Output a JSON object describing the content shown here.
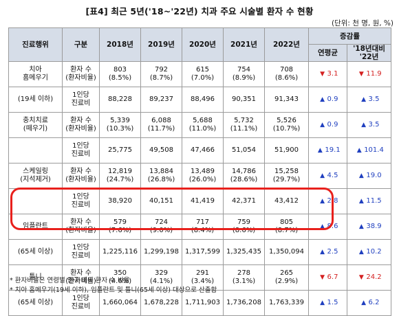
{
  "title": "[표4] 최근 5년('18~'22년) 치과 주요 시술별 환자 수 현황",
  "unit": "(단위: 천 명, 원, %)",
  "headers": {
    "treatment": "진료행위",
    "category": "구분",
    "years": [
      "2018년",
      "2019년",
      "2020년",
      "2021년",
      "2022년"
    ],
    "growth": "증감률",
    "annual": "연평균",
    "vs_line1": "'18년대비",
    "vs_line2": "'22년"
  },
  "rows": [
    {
      "treatment_lines": [
        "치아",
        "홈메우기"
      ],
      "treatment_sub": "(19세 이하)",
      "patients": {
        "label_lines": [
          "환자 수",
          "(환자비율)"
        ],
        "values": [
          [
            "803",
            "(8.5%)"
          ],
          [
            "792",
            "(8.7%)"
          ],
          [
            "615",
            "(7.0%)"
          ],
          [
            "754",
            "(8.9%)"
          ],
          [
            "708",
            "(8.6%)"
          ]
        ],
        "annual": {
          "dir": "down",
          "value": "3.1"
        },
        "vs": {
          "dir": "down",
          "value": "11.9"
        }
      },
      "cost": {
        "label_lines": [
          "1인당",
          "진료비"
        ],
        "values": [
          "88,228",
          "89,237",
          "88,496",
          "90,351",
          "91,343"
        ],
        "annual": {
          "dir": "up",
          "value": "0.9"
        },
        "vs": {
          "dir": "up",
          "value": "3.5"
        }
      }
    },
    {
      "treatment_lines": [
        "충치치료",
        "(떼우기)"
      ],
      "treatment_sub": "",
      "patients": {
        "label_lines": [
          "환자 수",
          "(환자비율)"
        ],
        "values": [
          [
            "5,339",
            "(10.3%)"
          ],
          [
            "6,088",
            "(11.7%)"
          ],
          [
            "5,688",
            "(11.0%)"
          ],
          [
            "5,732",
            "(11.1%)"
          ],
          [
            "5,526",
            "(10.7%)"
          ]
        ],
        "annual": {
          "dir": "up",
          "value": "0.9"
        },
        "vs": {
          "dir": "up",
          "value": "3.5"
        }
      },
      "cost": {
        "label_lines": [
          "1인당",
          "진료비"
        ],
        "values": [
          "25,775",
          "49,508",
          "47,466",
          "51,054",
          "51,900"
        ],
        "annual": {
          "dir": "up",
          "value": "19.1"
        },
        "vs": {
          "dir": "up",
          "value": "101.4"
        }
      }
    },
    {
      "treatment_lines": [
        "스케일링",
        "(지석제거)"
      ],
      "treatment_sub": "",
      "patients": {
        "label_lines": [
          "환자 수",
          "(환자비율)"
        ],
        "values": [
          [
            "12,819",
            "(24.7%)"
          ],
          [
            "13,884",
            "(26.8%)"
          ],
          [
            "13,489",
            "(26.0%)"
          ],
          [
            "14,786",
            "(28.6%)"
          ],
          [
            "15,258",
            "(29.7%)"
          ]
        ],
        "annual": {
          "dir": "up",
          "value": "4.5"
        },
        "vs": {
          "dir": "up",
          "value": "19.0"
        }
      },
      "cost": {
        "label_lines": [
          "1인당",
          "진료비"
        ],
        "values": [
          "38,920",
          "40,151",
          "41,419",
          "42,371",
          "43,412"
        ],
        "annual": {
          "dir": "up",
          "value": "2.8"
        },
        "vs": {
          "dir": "up",
          "value": "11.5"
        }
      }
    },
    {
      "treatment_lines": [
        "임플란트"
      ],
      "treatment_sub": "(65세 이상)",
      "patients": {
        "label_lines": [
          "환자 수",
          "(환자비율)"
        ],
        "values": [
          [
            "579",
            "(7.6%)"
          ],
          [
            "724",
            "(9.0%)"
          ],
          [
            "717",
            "(8.4%)"
          ],
          [
            "759",
            "(8.6%)"
          ],
          [
            "805",
            "(8.7%)"
          ]
        ],
        "annual": {
          "dir": "up",
          "value": "8.6"
        },
        "vs": {
          "dir": "up",
          "value": "38.9"
        }
      },
      "cost": {
        "label_lines": [
          "1인당",
          "진료비"
        ],
        "values": [
          "1,225,116",
          "1,299,198",
          "1,317,599",
          "1,325,435",
          "1,350,094"
        ],
        "annual": {
          "dir": "up",
          "value": "2.5"
        },
        "vs": {
          "dir": "up",
          "value": "10.2"
        }
      }
    },
    {
      "treatment_lines": [
        "틀니"
      ],
      "treatment_sub": "(65세 이상)",
      "patients": {
        "label_lines": [
          "환자 수",
          "(환자비율)"
        ],
        "values": [
          [
            "350",
            "(4.6%)"
          ],
          [
            "329",
            "(4.1%)"
          ],
          [
            "291",
            "(3.4%)"
          ],
          [
            "278",
            "(3.1%)"
          ],
          [
            "265",
            "(2.9%)"
          ]
        ],
        "annual": {
          "dir": "down",
          "value": "6.7"
        },
        "vs": {
          "dir": "down",
          "value": "24.2"
        }
      },
      "cost": {
        "label_lines": [
          "1인당",
          "진료비"
        ],
        "values": [
          "1,660,064",
          "1,678,228",
          "1,711,903",
          "1,736,208",
          "1,763,339"
        ],
        "annual": {
          "dir": "up",
          "value": "1.5"
        },
        "vs": {
          "dir": "up",
          "value": "6.2"
        }
      }
    }
  ],
  "notes": [
    "* 환자비율은 연령별 인구 대비 환자 수 비율",
    "* 치아 홈메우기(19세 이하), 임플란트 및 틀니(65세 이상) 대상으로 산출함"
  ],
  "colors": {
    "header_bg": "#d6dde8",
    "up_arrow": "#1f3fbf",
    "down_arrow": "#d42020",
    "highlight": "#e8201c"
  }
}
